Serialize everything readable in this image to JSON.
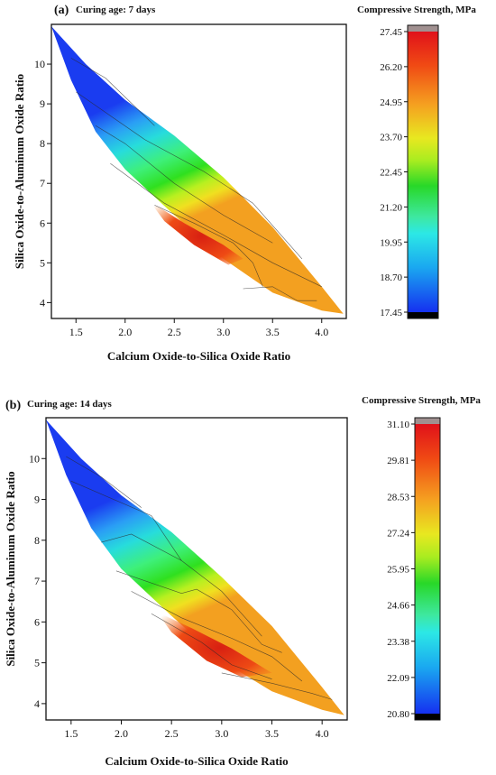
{
  "chart_data": [
    {
      "type": "contour",
      "panel_tag": "(a)",
      "title": "Curing age: 7 days",
      "xlabel": "Calcium Oxide-to-Silica Oxide Ratio",
      "ylabel": "Silica Oxide-to-Aluminum Oxide Ratio",
      "xlim": [
        1.25,
        4.25
      ],
      "ylim": [
        3.6,
        11.0
      ],
      "x_ticks": [
        "1.5",
        "2.0",
        "2.5",
        "3.0",
        "3.5",
        "4.0"
      ],
      "y_ticks": [
        "4",
        "5",
        "6",
        "7",
        "8",
        "9",
        "10"
      ],
      "colorbar": {
        "title": "Compressive Strength, MPa",
        "min": 17.45,
        "max": 27.45,
        "ticks": [
          "27.45",
          "26.20",
          "24.95",
          "23.70",
          "22.45",
          "21.20",
          "19.95",
          "18.70",
          "17.45"
        ]
      },
      "upper_boundary": [
        [
          1.25,
          10.95
        ],
        [
          1.6,
          10.0
        ],
        [
          2.0,
          9.1
        ],
        [
          2.5,
          8.2
        ],
        [
          3.0,
          7.15
        ],
        [
          3.5,
          5.9
        ],
        [
          4.0,
          4.4
        ],
        [
          4.22,
          3.72
        ]
      ],
      "lower_boundary": [
        [
          1.25,
          10.95
        ],
        [
          1.45,
          9.6
        ],
        [
          1.7,
          8.3
        ],
        [
          2.0,
          7.35
        ],
        [
          2.5,
          6.2
        ],
        [
          3.0,
          5.1
        ],
        [
          3.5,
          4.25
        ],
        [
          4.0,
          3.8
        ],
        [
          4.22,
          3.72
        ]
      ],
      "hot_core": [
        [
          2.25,
          6.55
        ],
        [
          2.6,
          6.0
        ],
        [
          3.0,
          5.45
        ],
        [
          3.2,
          5.1
        ],
        [
          3.05,
          4.95
        ],
        [
          2.7,
          5.45
        ],
        [
          2.4,
          6.05
        ]
      ],
      "contour_lines": [
        [
          [
            1.45,
            10.15
          ],
          [
            1.8,
            9.65
          ],
          [
            2.3,
            8.45
          ]
        ],
        [
          [
            1.5,
            9.3
          ],
          [
            2.2,
            8.1
          ],
          [
            2.8,
            7.3
          ],
          [
            3.3,
            6.5
          ],
          [
            3.8,
            5.1
          ]
        ],
        [
          [
            1.7,
            8.45
          ],
          [
            2.0,
            8.0
          ],
          [
            2.5,
            7.0
          ],
          [
            3.0,
            6.2
          ],
          [
            3.5,
            5.5
          ]
        ],
        [
          [
            1.85,
            7.5
          ],
          [
            2.4,
            6.5
          ],
          [
            3.0,
            5.7
          ],
          [
            3.5,
            5.0
          ],
          [
            4.0,
            4.4
          ]
        ],
        [
          [
            2.3,
            6.45
          ],
          [
            2.7,
            6.0
          ],
          [
            3.1,
            5.5
          ],
          [
            3.3,
            5.0
          ],
          [
            3.4,
            4.4
          ]
        ],
        [
          [
            3.2,
            4.35
          ],
          [
            3.5,
            4.4
          ],
          [
            3.75,
            4.05
          ],
          [
            3.95,
            4.05
          ]
        ]
      ]
    },
    {
      "type": "contour",
      "panel_tag": "(b)",
      "title": "Curing age: 14 days",
      "xlabel": "Calcium Oxide-to-Silica Oxide Ratio",
      "ylabel": "Silica Oxide-to-Aluminum Oxide Ratio",
      "xlim": [
        1.25,
        4.25
      ],
      "ylim": [
        3.6,
        11.0
      ],
      "x_ticks": [
        "1.5",
        "2.0",
        "2.5",
        "3.0",
        "3.5",
        "4.0"
      ],
      "y_ticks": [
        "4",
        "5",
        "6",
        "7",
        "8",
        "9",
        "10"
      ],
      "colorbar": {
        "title": "Compressive Strength, MPa",
        "min": 20.8,
        "max": 31.1,
        "ticks": [
          "31.10",
          "29.81",
          "28.53",
          "27.24",
          "25.95",
          "24.66",
          "23.38",
          "22.09",
          "20.80"
        ]
      },
      "upper_boundary": [
        [
          1.25,
          10.95
        ],
        [
          1.6,
          10.0
        ],
        [
          2.0,
          9.1
        ],
        [
          2.5,
          8.2
        ],
        [
          3.0,
          7.1
        ],
        [
          3.5,
          5.9
        ],
        [
          4.0,
          4.4
        ],
        [
          4.22,
          3.72
        ]
      ],
      "lower_boundary": [
        [
          1.25,
          10.95
        ],
        [
          1.45,
          9.6
        ],
        [
          1.7,
          8.3
        ],
        [
          2.0,
          7.3
        ],
        [
          2.5,
          6.15
        ],
        [
          3.0,
          5.05
        ],
        [
          3.5,
          4.3
        ],
        [
          4.0,
          3.85
        ],
        [
          4.22,
          3.72
        ]
      ],
      "hot_core": [
        [
          2.35,
          6.25
        ],
        [
          2.7,
          5.85
        ],
        [
          3.1,
          5.35
        ],
        [
          3.5,
          4.75
        ],
        [
          3.2,
          4.65
        ],
        [
          2.85,
          5.05
        ],
        [
          2.5,
          5.75
        ]
      ],
      "contour_lines": [
        [
          [
            1.45,
            10.05
          ],
          [
            1.8,
            9.55
          ],
          [
            2.2,
            8.8
          ]
        ],
        [
          [
            1.5,
            9.45
          ],
          [
            2.3,
            8.6
          ],
          [
            2.6,
            7.5
          ]
        ],
        [
          [
            1.8,
            7.95
          ],
          [
            2.1,
            8.15
          ],
          [
            2.6,
            7.5
          ],
          [
            3.0,
            6.75
          ],
          [
            3.4,
            5.65
          ]
        ],
        [
          [
            1.95,
            7.25
          ],
          [
            2.6,
            6.7
          ],
          [
            2.75,
            6.8
          ],
          [
            3.1,
            6.3
          ],
          [
            3.4,
            5.45
          ],
          [
            3.6,
            5.25
          ]
        ],
        [
          [
            2.1,
            6.75
          ],
          [
            2.6,
            6.1
          ],
          [
            3.1,
            5.6
          ],
          [
            3.5,
            5.15
          ],
          [
            3.8,
            4.55
          ]
        ],
        [
          [
            2.3,
            6.2
          ],
          [
            2.8,
            5.5
          ],
          [
            3.1,
            4.95
          ],
          [
            3.5,
            4.6
          ]
        ],
        [
          [
            3.0,
            4.75
          ],
          [
            3.5,
            4.5
          ],
          [
            3.9,
            4.25
          ],
          [
            4.1,
            4.1
          ]
        ]
      ]
    }
  ]
}
